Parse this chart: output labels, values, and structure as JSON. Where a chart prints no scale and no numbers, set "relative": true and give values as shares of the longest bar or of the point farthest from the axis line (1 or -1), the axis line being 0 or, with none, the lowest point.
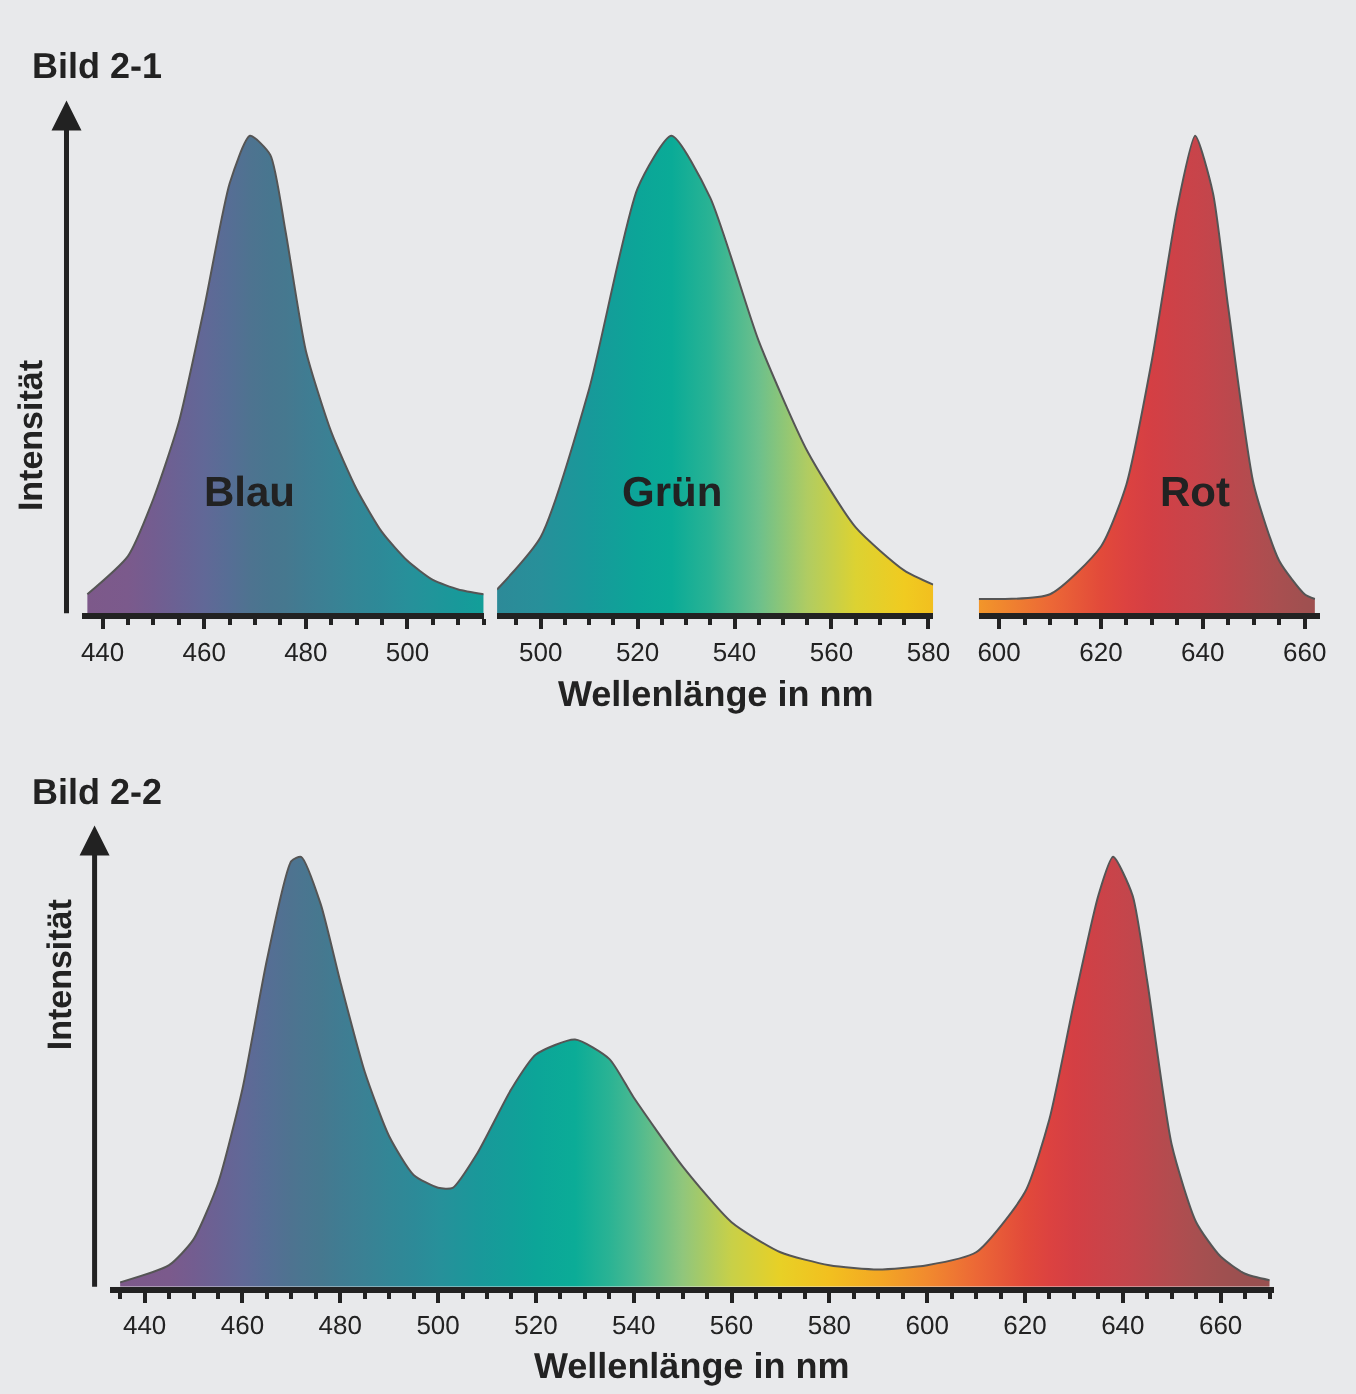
{
  "chart_data": [
    {
      "type": "area",
      "relative": true,
      "title": "Bild 2-1",
      "ylabel": "Intensität",
      "xlim": [
        436,
        515
      ],
      "xticks": [
        440,
        460,
        480,
        500
      ],
      "series": [
        {
          "name": "Blau",
          "x": [
            437,
            445,
            450,
            455,
            460,
            465,
            469,
            473,
            476,
            480,
            485,
            490,
            495,
            500,
            505,
            510,
            515
          ],
          "values": [
            0.04,
            0.12,
            0.24,
            0.4,
            0.64,
            0.9,
            1.0,
            0.96,
            0.8,
            0.55,
            0.38,
            0.26,
            0.17,
            0.11,
            0.07,
            0.05,
            0.04
          ],
          "colors": [
            "#7d598a",
            "#7b5a8c",
            "#735d90",
            "#6a6294",
            "#616897",
            "#566e95",
            "#4e7390",
            "#48768f",
            "#46788f",
            "#407c92",
            "#3a8194",
            "#338696",
            "#2d8a98",
            "#27909a",
            "#20959a",
            "#18999a",
            "#129f99"
          ]
        }
      ]
    },
    {
      "type": "area",
      "relative": true,
      "xlabel": "Wellenlänge in nm",
      "xlim": [
        491,
        581
      ],
      "xticks": [
        500,
        520,
        540,
        560,
        580
      ],
      "series": [
        {
          "name": "Grün",
          "x": [
            491,
            500,
            510,
            520,
            527,
            535,
            545,
            555,
            565,
            575,
            581
          ],
          "values": [
            0.05,
            0.16,
            0.47,
            0.89,
            1.0,
            0.87,
            0.57,
            0.34,
            0.18,
            0.09,
            0.06
          ],
          "colors": [
            "#2d8a98",
            "#27909a",
            "#18999a",
            "#0ca598",
            "#0aab97",
            "#2ab394",
            "#6cc08c",
            "#b0cc62",
            "#dcd232",
            "#f0cb20",
            "#f2bf1f"
          ]
        }
      ]
    },
    {
      "type": "area",
      "relative": true,
      "xlim": [
        596,
        663
      ],
      "xticks": [
        600,
        620,
        640,
        660
      ],
      "series": [
        {
          "name": "Rot",
          "x": [
            596,
            610,
            620,
            625,
            630,
            635,
            638.5,
            642,
            645,
            650,
            655,
            660,
            662
          ],
          "values": [
            0.03,
            0.04,
            0.14,
            0.27,
            0.53,
            0.85,
            1.0,
            0.88,
            0.64,
            0.27,
            0.11,
            0.04,
            0.03
          ],
          "colors": [
            "#f2962a",
            "#ec6836",
            "#e24a3a",
            "#dc4240",
            "#d43f44",
            "#cc4248",
            "#c8444a",
            "#c2464c",
            "#bc484d",
            "#b24c4f",
            "#a84f50",
            "#a05050",
            "#9e5050"
          ]
        }
      ]
    },
    {
      "type": "area",
      "relative": true,
      "title": "Bild 2-2",
      "ylabel": "Intensität",
      "xlabel": "Wellenlänge in nm",
      "xlim": [
        433,
        671
      ],
      "xticks": [
        440,
        460,
        480,
        500,
        520,
        540,
        560,
        580,
        600,
        620,
        640,
        660
      ],
      "series": [
        {
          "x": [
            435,
            445,
            450,
            455,
            460,
            465,
            470,
            472,
            476,
            480,
            485,
            490,
            495,
            500,
            503,
            508,
            515,
            520,
            528,
            535,
            540,
            550,
            560,
            570,
            580,
            590,
            600,
            610,
            620,
            625,
            630,
            635,
            638,
            642,
            645,
            650,
            655,
            660,
            665,
            670
          ],
          "values": [
            0.01,
            0.05,
            0.11,
            0.24,
            0.46,
            0.76,
            0.99,
            1.0,
            0.89,
            0.71,
            0.5,
            0.35,
            0.26,
            0.23,
            0.23,
            0.31,
            0.46,
            0.54,
            0.575,
            0.53,
            0.44,
            0.28,
            0.15,
            0.08,
            0.05,
            0.04,
            0.05,
            0.08,
            0.22,
            0.39,
            0.66,
            0.91,
            1.0,
            0.91,
            0.71,
            0.33,
            0.15,
            0.07,
            0.03,
            0.015
          ],
          "colors": [
            "#7d598a",
            "#7b5a8c",
            "#735d90",
            "#6a6294",
            "#616897",
            "#566e95",
            "#4e7390",
            "#4b7590",
            "#46788f",
            "#407c92",
            "#3a8194",
            "#338696",
            "#2d8a98",
            "#27909a",
            "#22939a",
            "#1a989a",
            "#129f99",
            "#0ca598",
            "#0bac97",
            "#2ab394",
            "#48b991",
            "#90c67c",
            "#c8d048",
            "#e8d026",
            "#f2c01f",
            "#f3a824",
            "#f18a2e",
            "#ec6836",
            "#e24a3a",
            "#dc4240",
            "#d43f44",
            "#cc4248",
            "#c8444a",
            "#c2464c",
            "#bc484d",
            "#b24c4f",
            "#a84f50",
            "#a05050",
            "#9a5050",
            "#985050"
          ]
        }
      ]
    }
  ]
}
